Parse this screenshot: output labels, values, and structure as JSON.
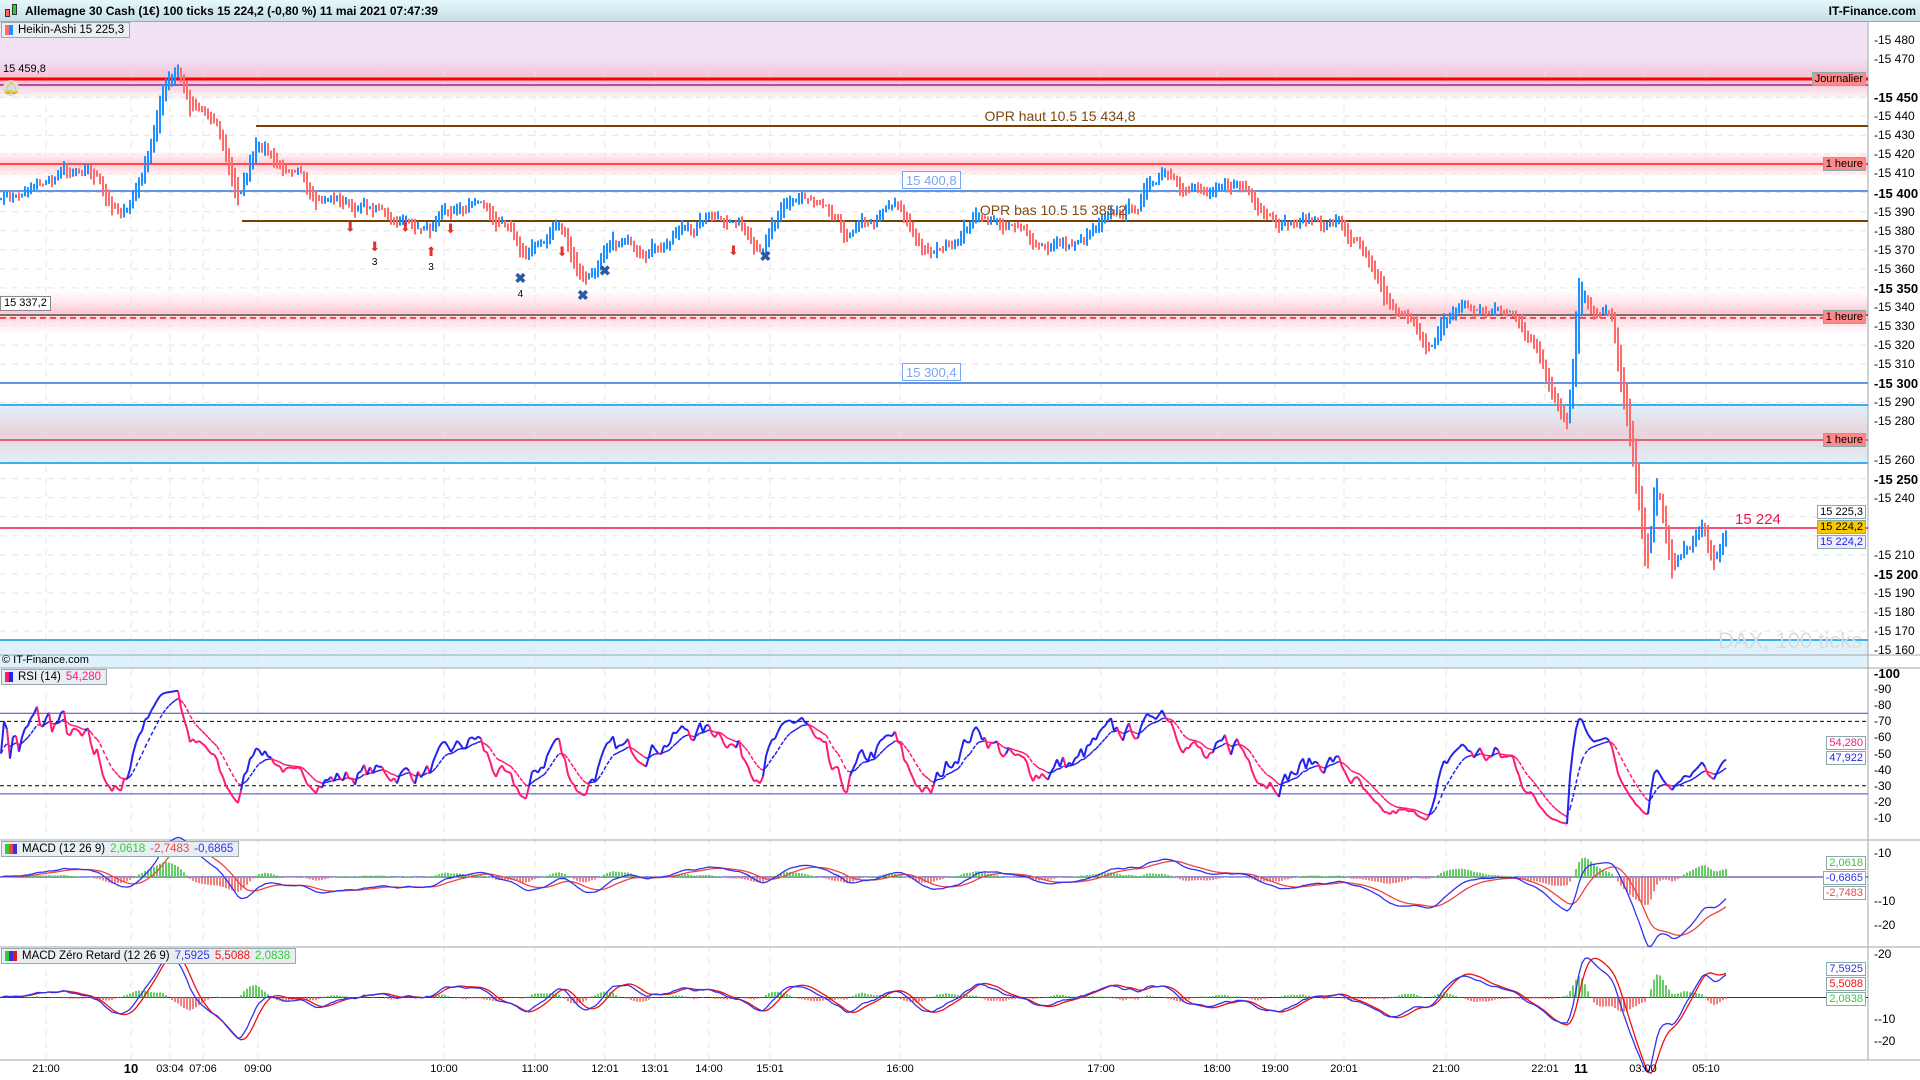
{
  "window": {
    "title": "Allemagne 30 Cash (1€) 100 ticks 15 224,2 (-0,80 %) 11 mai 2021 07:47:39",
    "brand": "IT-Finance.com",
    "logo_icon": "candlestick-icon"
  },
  "main": {
    "legend": {
      "label": "Heikin-Ashi 15 225,3",
      "colors": [
        "#ff6a6a",
        "#1e90ff"
      ]
    },
    "left_labels": {
      "daily_high": "15 459,8",
      "level": "15 337,2"
    },
    "alert_icon": "bell-icon",
    "levels": {
      "opr_high": "OPR haut 10.5 15 434,8",
      "opr_low": "OPR bas 10.5 15 385,2",
      "box1": "15 400,8",
      "box2": "15 300,4",
      "last": "15 224"
    },
    "watermark": "DAX, 100 ticks",
    "copyright": "© IT-Finance.com",
    "axis_labels": [
      [
        "15 480",
        false
      ],
      [
        "15 470",
        false
      ],
      [
        "15 450",
        true
      ],
      [
        "15 440",
        false
      ],
      [
        "15 430",
        false
      ],
      [
        "15 420",
        false
      ],
      [
        "15 410",
        false
      ],
      [
        "15 400",
        true
      ],
      [
        "15 390",
        false
      ],
      [
        "15 380",
        false
      ],
      [
        "15 370",
        false
      ],
      [
        "15 360",
        false
      ],
      [
        "15 350",
        true
      ],
      [
        "15 340",
        false
      ],
      [
        "15 330",
        false
      ],
      [
        "15 320",
        false
      ],
      [
        "15 310",
        false
      ],
      [
        "15 300",
        true
      ],
      [
        "15 290",
        false
      ],
      [
        "15 280",
        false
      ],
      [
        "15 260",
        false
      ],
      [
        "15 250",
        true
      ],
      [
        "15 240",
        false
      ],
      [
        "15 210",
        false
      ],
      [
        "15 200",
        true
      ],
      [
        "15 190",
        false
      ],
      [
        "15 180",
        false
      ],
      [
        "15 170",
        false
      ],
      [
        "15 160",
        false
      ]
    ],
    "tags": {
      "daily": "Journalier",
      "hour1": "1 heure",
      "hour2": "1 heure",
      "hour3": "1 heure",
      "ha": "15 225,3",
      "price": "15 224,2",
      "price2": "15 224,2"
    },
    "signal_counts": [
      "3",
      "3",
      "4"
    ],
    "colors": {
      "up": "#1e90ff",
      "down": "#ff6a6a",
      "opr": "#7b3f00",
      "level": "#6495ed",
      "alert": "#ff0000"
    }
  },
  "rsi": {
    "name": "RSI (14)",
    "value": "54,280",
    "signal": "47,922",
    "axis": [
      "100",
      "90",
      "80",
      "70",
      "60",
      "50",
      "40",
      "30",
      "20",
      "10"
    ],
    "colors": {
      "rsi": "#ff1a75",
      "signal": "#2222ee"
    }
  },
  "macd": {
    "name": "MACD (12 26 9)",
    "hist": "2,0618",
    "signal": "-2,7483",
    "macd": "-0,6865",
    "axis": [
      "10",
      "-10",
      "-20"
    ]
  },
  "macdzr": {
    "name": "MACD Zéro Retard (12 26 9)",
    "macd": "7,5925",
    "signal": "5,5088",
    "hist": "2,0838",
    "axis": [
      "20",
      "-10",
      "-20"
    ]
  },
  "time_axis": [
    [
      "21:00",
      false
    ],
    [
      "10",
      true
    ],
    [
      "03:04",
      false
    ],
    [
      "07:06",
      false
    ],
    [
      "09:00",
      false
    ],
    [
      "10:00",
      false
    ],
    [
      "11:00",
      false
    ],
    [
      "12:01",
      false
    ],
    [
      "13:01",
      false
    ],
    [
      "14:00",
      false
    ],
    [
      "15:01",
      false
    ],
    [
      "16:00",
      false
    ],
    [
      "17:00",
      false
    ],
    [
      "18:00",
      false
    ],
    [
      "19:00",
      false
    ],
    [
      "20:01",
      false
    ],
    [
      "21:00",
      false
    ],
    [
      "22:01",
      false
    ],
    [
      "11",
      true
    ],
    [
      "03:00",
      false
    ],
    [
      "05:10",
      false
    ]
  ]
}
